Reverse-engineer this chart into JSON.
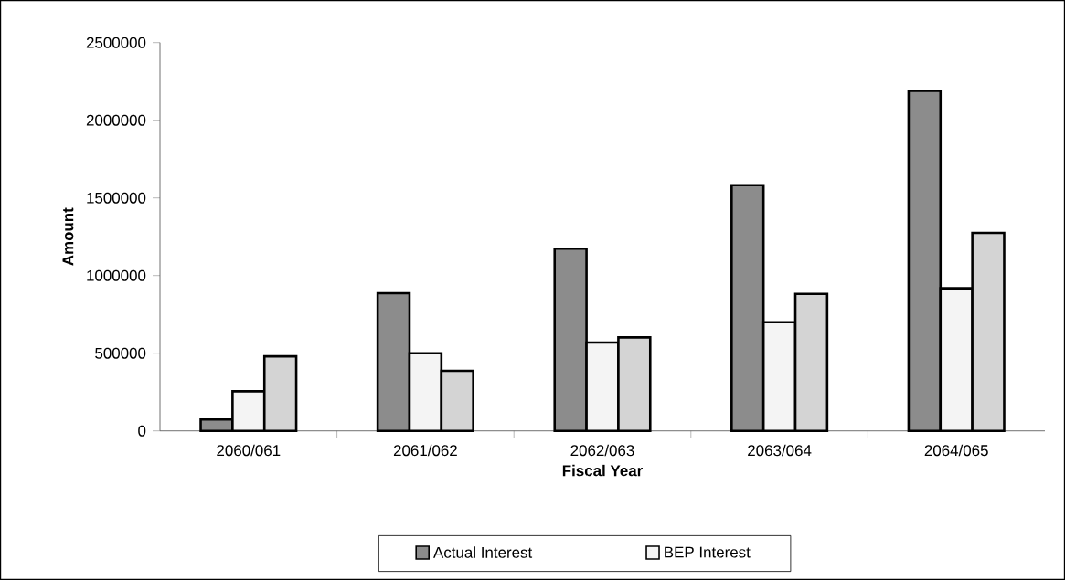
{
  "chart_data": {
    "type": "bar",
    "xlabel": "Fiscal Year",
    "ylabel": "Amount",
    "categories": [
      "2060/061",
      "2061/062",
      "2062/063",
      "2063/064",
      "2064/065"
    ],
    "series": [
      {
        "name": "Actual Interest",
        "color": "#8c8c8c",
        "values": [
          73000,
          886000,
          1173000,
          1582000,
          2190000
        ]
      },
      {
        "name": "BEP Interest",
        "color": "#f4f4f4",
        "values": [
          255000,
          500000,
          569000,
          700000,
          918000
        ]
      },
      {
        "color": "#d4d4d4",
        "values": [
          480000,
          386000,
          602000,
          882000,
          1275000
        ]
      }
    ],
    "ylim": [
      0,
      2500000
    ],
    "yticks": [
      0,
      500000,
      1000000,
      1500000,
      2000000,
      2500000
    ],
    "grid": false,
    "legend": "bottom"
  }
}
